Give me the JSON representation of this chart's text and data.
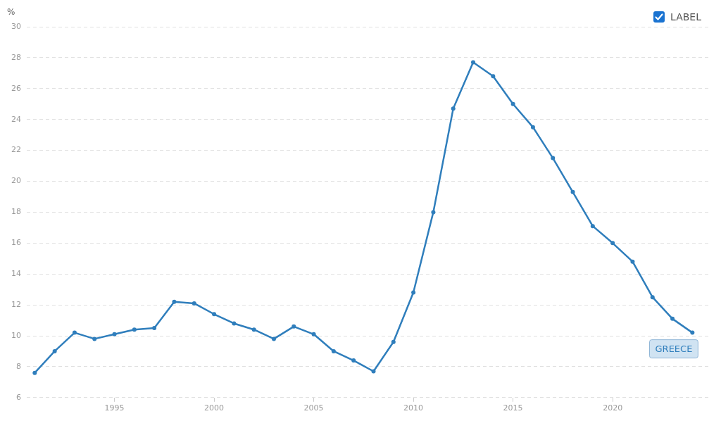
{
  "chart_data": {
    "type": "line",
    "ylabel": "%",
    "x": [
      1991,
      1992,
      1993,
      1994,
      1995,
      1996,
      1997,
      1998,
      1999,
      2000,
      2001,
      2002,
      2003,
      2004,
      2005,
      2006,
      2007,
      2008,
      2009,
      2010,
      2011,
      2012,
      2013,
      2014,
      2015,
      2016,
      2017,
      2018,
      2019,
      2020,
      2021,
      2022,
      2023,
      2024
    ],
    "series": [
      {
        "name": "GREECE",
        "color": "#2f7ebc",
        "values": [
          7.6,
          9.0,
          10.2,
          9.8,
          10.1,
          10.4,
          10.5,
          12.2,
          12.1,
          11.4,
          10.8,
          10.4,
          9.8,
          10.6,
          10.1,
          9.0,
          8.4,
          7.7,
          9.6,
          12.8,
          18.0,
          24.7,
          27.7,
          26.8,
          25.0,
          23.5,
          21.5,
          19.3,
          17.1,
          16.0,
          14.8,
          12.5,
          11.1,
          10.2
        ]
      }
    ],
    "xlim": [
      1990.6,
      2024.8
    ],
    "xticks": [
      1995,
      2000,
      2005,
      2010,
      2015,
      2020
    ],
    "ylim": [
      6,
      30
    ],
    "yticks": [
      6,
      8,
      10,
      12,
      14,
      16,
      18,
      20,
      22,
      24,
      26,
      28,
      30
    ],
    "grid": "y",
    "legend": false,
    "marker": "circle",
    "line_style": "solid",
    "annotations": [
      "LABEL"
    ]
  }
}
